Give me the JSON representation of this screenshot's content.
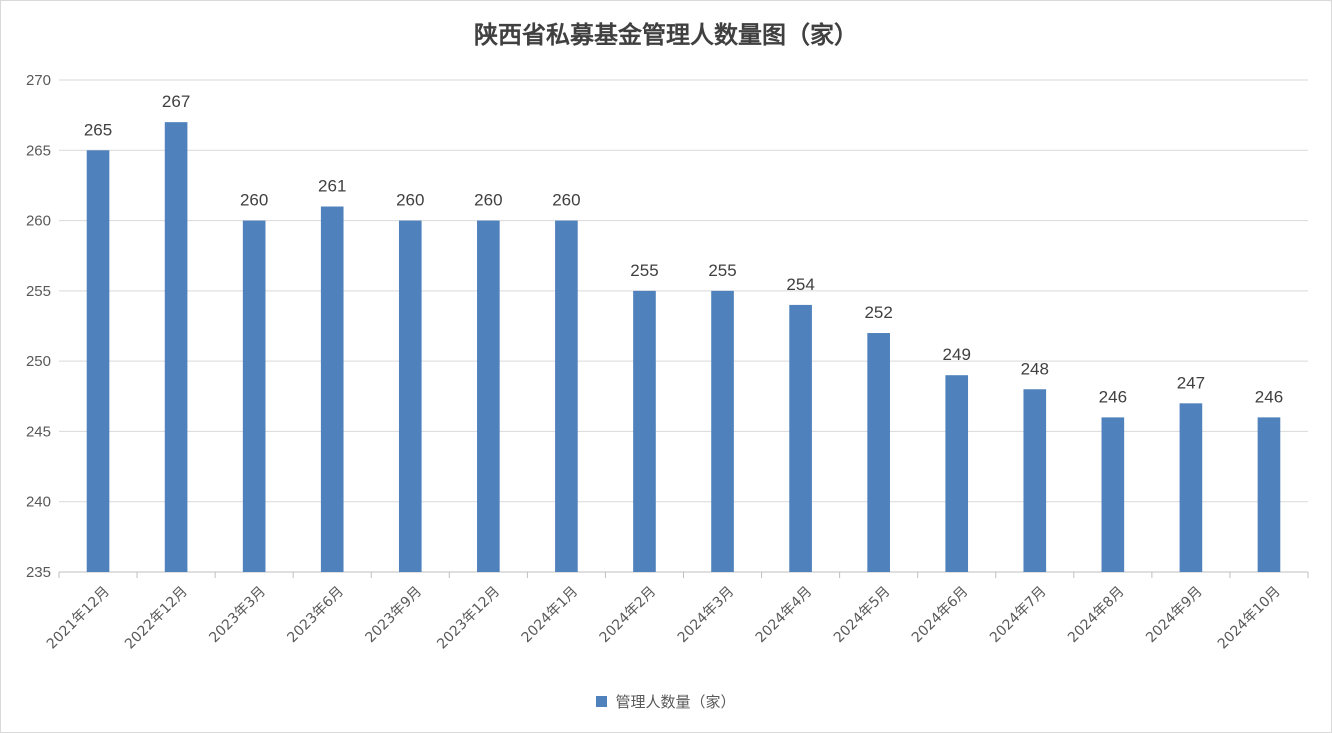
{
  "chart_data": {
    "type": "bar",
    "title": "陕西省私募基金管理人数量图（家）",
    "xlabel": "",
    "ylabel": "",
    "categories": [
      "2021年12月",
      "2022年12月",
      "2023年3月",
      "2023年6月",
      "2023年9月",
      "2023年12月",
      "2024年1月",
      "2024年2月",
      "2024年3月",
      "2024年4月",
      "2024年5月",
      "2024年6月",
      "2024年7月",
      "2024年8月",
      "2024年9月",
      "2024年10月"
    ],
    "series": [
      {
        "name": "管理人数量（家）",
        "values": [
          265,
          267,
          260,
          261,
          260,
          260,
          260,
          255,
          255,
          254,
          252,
          249,
          248,
          246,
          247,
          246
        ]
      }
    ],
    "ylim": [
      235,
      270
    ],
    "yticks": [
      "235",
      "240",
      "245",
      "250",
      "255",
      "260",
      "265",
      "270"
    ],
    "grid": true,
    "legend_position": "bottom",
    "data_labels": true,
    "colors": {
      "bar": "#4f81bd",
      "grid": "#d9d9d9",
      "axis": "#bfbfbf"
    }
  }
}
